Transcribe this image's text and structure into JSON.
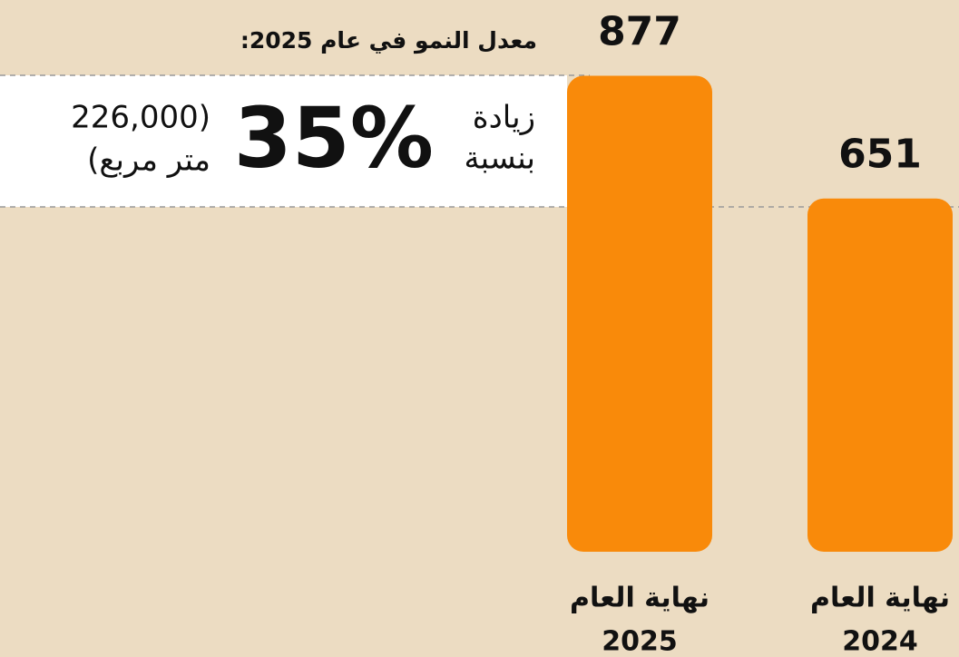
{
  "chart_data": {
    "type": "bar",
    "title": "معدل النمو في عام 2025:",
    "categories": [
      [
        "نهاية العام",
        "2025"
      ],
      [
        "نهاية العام",
        "2024"
      ]
    ],
    "values": [
      877,
      651
    ],
    "color": "#f98a0a",
    "annotation": {
      "lead": [
        "زيادة",
        "بنسبة"
      ],
      "headline": "35%",
      "note": [
        "(226,000",
        "متر مربع)"
      ]
    }
  }
}
